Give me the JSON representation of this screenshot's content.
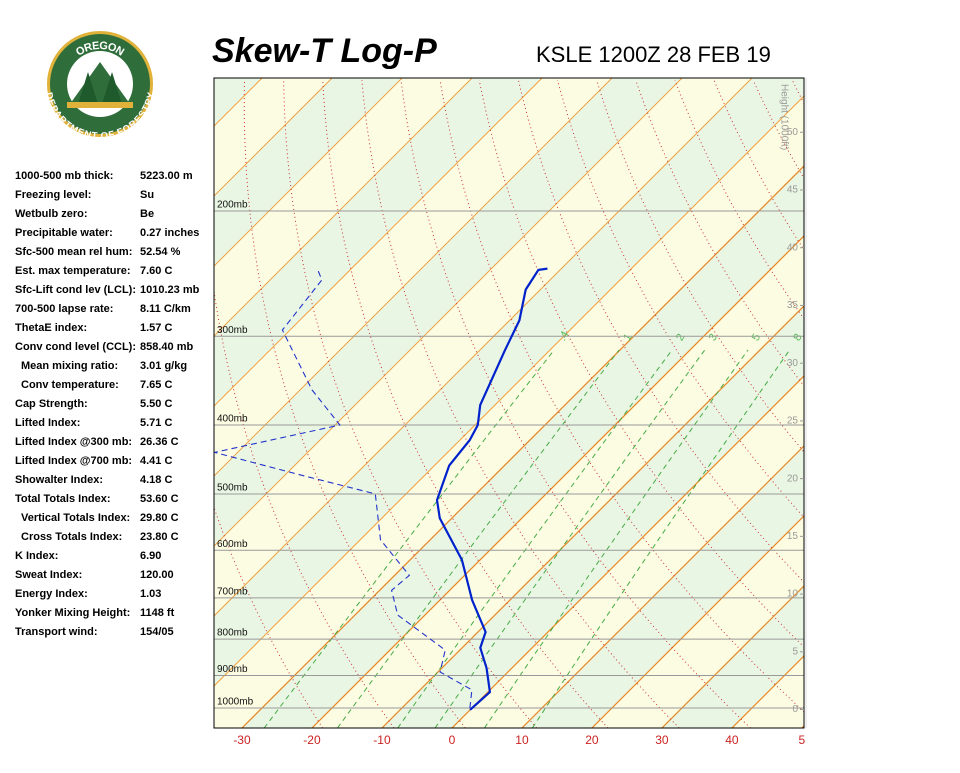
{
  "logo": {
    "top": "OREGON",
    "bottom": "DEPARTMENT OF FORESTRY"
  },
  "stats": [
    [
      "1000-500 mb thick:",
      "5223.00 m"
    ],
    [
      "Freezing level:",
      "Su"
    ],
    [
      "Wetbulb zero:",
      "Be"
    ],
    [
      "Precipitable water:",
      "0.27 inches"
    ],
    [
      "Sfc-500 mean rel hum:",
      "52.54 %"
    ],
    [
      "Est. max temperature:",
      "7.60 C"
    ],
    [
      "Sfc-Lift cond lev (LCL):",
      "1010.23 mb"
    ],
    [
      "700-500 lapse rate:",
      "8.11 C/km"
    ],
    [
      "ThetaE index:",
      "1.57 C"
    ],
    [
      "Conv cond level (CCL):",
      "858.40 mb"
    ],
    [
      "Mean mixing ratio:",
      "3.01 g/kg"
    ],
    [
      "Conv temperature:",
      "7.65 C"
    ],
    [
      "Cap Strength:",
      "5.50 C"
    ],
    [
      "Lifted Index:",
      "5.71 C"
    ],
    [
      "Lifted Index @300 mb:",
      "26.36 C"
    ],
    [
      "Lifted Index @700 mb:",
      "4.41 C"
    ],
    [
      "Showalter Index:",
      "4.18 C"
    ],
    [
      "Total Totals Index:",
      "53.60 C"
    ],
    [
      "Vertical Totals Index:",
      "29.80 C"
    ],
    [
      "Cross Totals Index:",
      "23.80 C"
    ],
    [
      "K Index:",
      "6.90"
    ],
    [
      "Sweat Index:",
      "120.00"
    ],
    [
      "Energy Index:",
      "1.03"
    ],
    [
      "Yonker Mixing Height:",
      "1148 ft"
    ],
    [
      "Transport wind:",
      "154/05"
    ]
  ],
  "chart_data": {
    "type": "skewt",
    "title": "Skew-T Log-P",
    "subtitle": "KSLE 1200Z 28 FEB 19",
    "xlim": [
      -34,
      50.3
    ],
    "xticks": [
      -30,
      -20,
      -10,
      0,
      10,
      20,
      30,
      40,
      {
        "value": 50,
        "label": "5"
      }
    ],
    "ylim": [
      1067,
      130
    ],
    "log_y": true,
    "yticks": [
      {
        "value": 200,
        "label": "200mb"
      },
      {
        "value": 300,
        "label": "300mb"
      },
      {
        "value": 400,
        "label": "400mb"
      },
      {
        "value": 500,
        "label": "500mb"
      },
      {
        "value": 600,
        "label": "600mb"
      },
      {
        "value": 700,
        "label": "700mb"
      },
      {
        "value": 800,
        "label": "800mb"
      },
      {
        "value": 900,
        "label": "900mb"
      },
      {
        "value": 1000,
        "label": "1000mb"
      }
    ],
    "y2label": "Height (1000ft)",
    "y2lim": [
      -1.6,
      54.7
    ],
    "y2ticks": [
      0,
      5,
      10,
      15,
      20,
      25,
      30,
      35,
      40,
      45,
      50
    ],
    "mixing_ratios": [
      {
        "value": 0.4,
        "label": ".4"
      },
      1,
      2,
      3,
      5,
      8
    ],
    "series": [
      {
        "color": "#0022cc",
        "style": "solid",
        "pressure": [
          1006,
          950,
          879,
          823,
          782,
          705,
          619,
          541,
          510,
          456,
          420,
          400,
          375,
          314,
          285,
          258,
          242,
          241
        ],
        "values": [
          0.0,
          0.3,
          -3.6,
          -7.4,
          -8.9,
          -15.4,
          -22.6,
          -31.7,
          -34.7,
          -37.9,
          -38.6,
          -39.6,
          -42.1,
          -46.4,
          -48.6,
          -52.1,
          -53.1,
          -52.0
        ]
      },
      {
        "color": "#2233cc",
        "style": "dashed",
        "pressure": [
          1000,
          943,
          890,
          829,
          740,
          683,
          651,
          580,
          500,
          470,
          437,
          400,
          357,
          294,
          250,
          241
        ],
        "values": [
          -0.3,
          -2.6,
          -9.7,
          -12.1,
          -23.9,
          -28.3,
          -27.9,
          -37.1,
          -44.4,
          -57.9,
          -73.3,
          -59.3,
          -68.3,
          -81.1,
          -82.6,
          -84.9
        ]
      }
    ]
  }
}
